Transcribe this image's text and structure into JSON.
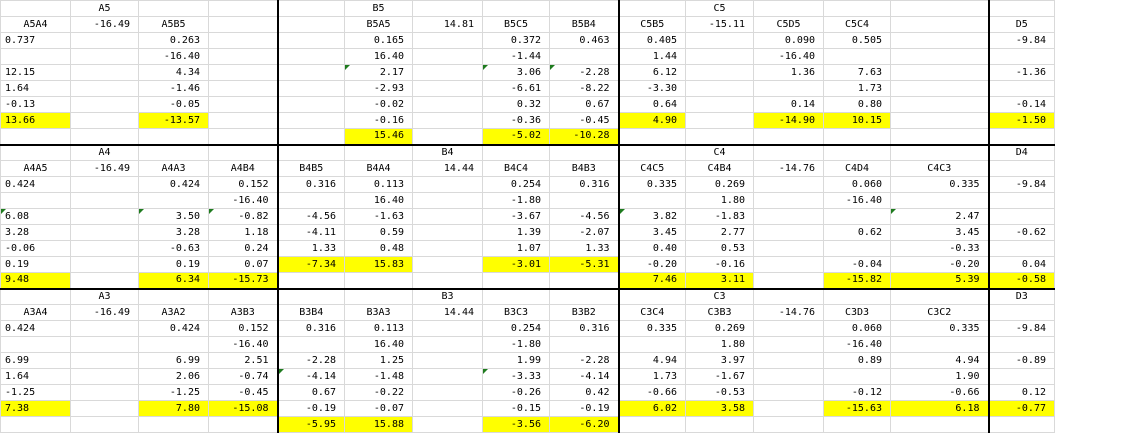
{
  "highlight_color": "#ffff00",
  "flag_color": "#1e7b1e",
  "sheet": {
    "rows": [
      [
        "",
        "A5",
        "",
        "",
        "",
        "B5",
        "",
        "",
        "",
        "",
        "C5",
        "",
        "",
        "",
        ""
      ],
      [
        "A5A4",
        "-16.49",
        "A5B5",
        "",
        "",
        "B5A5",
        "14.81",
        "B5C5",
        "B5B4",
        "C5B5",
        "-15.11",
        "C5D5",
        "C5C4",
        "",
        "D5"
      ],
      [
        "0.737",
        "",
        "0.263",
        "",
        "",
        "0.165",
        "",
        "0.372",
        "0.463",
        "0.405",
        "",
        "0.090",
        "0.505",
        "",
        "-9.84"
      ],
      [
        "",
        "",
        "-16.40",
        "",
        "",
        "16.40",
        "",
        "-1.44",
        "",
        "1.44",
        "",
        "-16.40",
        "",
        "",
        ""
      ],
      [
        "12.15",
        "",
        "4.34",
        "",
        "",
        "2.17",
        "",
        "3.06",
        "-2.28",
        "6.12",
        "",
        "1.36",
        "7.63",
        "",
        "-1.36"
      ],
      [
        "1.64",
        "",
        "-1.46",
        "",
        "",
        "-2.93",
        "",
        "-6.61",
        "-8.22",
        "-3.30",
        "",
        "",
        "1.73",
        "",
        ""
      ],
      [
        "-0.13",
        "",
        "-0.05",
        "",
        "",
        "-0.02",
        "",
        "0.32",
        "0.67",
        "0.64",
        "",
        "0.14",
        "0.80",
        "",
        "-0.14"
      ],
      [
        "13.66",
        "",
        "-13.57",
        "",
        "",
        "-0.16",
        "",
        "-0.36",
        "-0.45",
        "4.90",
        "",
        "-14.90",
        "10.15",
        "",
        "-1.50"
      ],
      [
        "",
        "",
        "",
        "",
        "",
        "15.46",
        "",
        "-5.02",
        "-10.28",
        "",
        "",
        "",
        "",
        "",
        ""
      ],
      [
        "",
        "A4",
        "",
        "",
        "",
        "",
        "B4",
        "",
        "",
        "",
        "C4",
        "",
        "",
        "",
        "D4"
      ],
      [
        "A4A5",
        "-16.49",
        "A4A3",
        "A4B4",
        "B4B5",
        "B4A4",
        "14.44",
        "B4C4",
        "B4B3",
        "C4C5",
        "C4B4",
        "-14.76",
        "C4D4",
        "C4C3",
        ""
      ],
      [
        "0.424",
        "",
        "0.424",
        "0.152",
        "0.316",
        "0.113",
        "",
        "0.254",
        "0.316",
        "0.335",
        "0.269",
        "",
        "0.060",
        "0.335",
        "-9.84"
      ],
      [
        "",
        "",
        "",
        "-16.40",
        "",
        "16.40",
        "",
        "-1.80",
        "",
        "",
        "1.80",
        "",
        "-16.40",
        "",
        ""
      ],
      [
        "6.08",
        "",
        "3.50",
        "-0.82",
        "-4.56",
        "-1.63",
        "",
        "-3.67",
        "-4.56",
        "3.82",
        "-1.83",
        "",
        "",
        "2.47",
        ""
      ],
      [
        "3.28",
        "",
        "3.28",
        "1.18",
        "-4.11",
        "0.59",
        "",
        "1.39",
        "-2.07",
        "3.45",
        "2.77",
        "",
        "0.62",
        "3.45",
        "-0.62"
      ],
      [
        "-0.06",
        "",
        "-0.63",
        "0.24",
        "1.33",
        "0.48",
        "",
        "1.07",
        "1.33",
        "0.40",
        "0.53",
        "",
        "",
        "-0.33",
        ""
      ],
      [
        "0.19",
        "",
        "0.19",
        "0.07",
        "-7.34",
        "15.83",
        "",
        "-3.01",
        "-5.31",
        "-0.20",
        "-0.16",
        "",
        "-0.04",
        "-0.20",
        "0.04"
      ],
      [
        "9.48",
        "",
        "6.34",
        "-15.73",
        "",
        "",
        "",
        "",
        "",
        "7.46",
        "3.11",
        "",
        "-15.82",
        "5.39",
        "-0.58"
      ],
      [
        "",
        "A3",
        "",
        "",
        "",
        "",
        "B3",
        "",
        "",
        "",
        "C3",
        "",
        "",
        "",
        "D3"
      ],
      [
        "A3A4",
        "-16.49",
        "A3A2",
        "A3B3",
        "B3B4",
        "B3A3",
        "14.44",
        "B3C3",
        "B3B2",
        "C3C4",
        "C3B3",
        "-14.76",
        "C3D3",
        "C3C2",
        ""
      ],
      [
        "0.424",
        "",
        "0.424",
        "0.152",
        "0.316",
        "0.113",
        "",
        "0.254",
        "0.316",
        "0.335",
        "0.269",
        "",
        "0.060",
        "0.335",
        "-9.84"
      ],
      [
        "",
        "",
        "",
        "-16.40",
        "",
        "16.40",
        "",
        "-1.80",
        "",
        "",
        "1.80",
        "",
        "-16.40",
        "",
        ""
      ],
      [
        "6.99",
        "",
        "6.99",
        "2.51",
        "-2.28",
        "1.25",
        "",
        "1.99",
        "-2.28",
        "4.94",
        "3.97",
        "",
        "0.89",
        "4.94",
        "-0.89"
      ],
      [
        "1.64",
        "",
        "2.06",
        "-0.74",
        "-4.14",
        "-1.48",
        "",
        "-3.33",
        "-4.14",
        "1.73",
        "-1.67",
        "",
        "",
        "1.90",
        ""
      ],
      [
        "-1.25",
        "",
        "-1.25",
        "-0.45",
        "0.67",
        "-0.22",
        "",
        "-0.26",
        "0.42",
        "-0.66",
        "-0.53",
        "",
        "-0.12",
        "-0.66",
        "0.12"
      ],
      [
        "7.38",
        "",
        "7.80",
        "-15.08",
        "-0.19",
        "-0.07",
        "",
        "-0.15",
        "-0.19",
        "6.02",
        "3.58",
        "",
        "-15.63",
        "6.18",
        "-0.77"
      ],
      [
        "",
        "",
        "",
        "",
        "-5.95",
        "15.88",
        "",
        "-3.56",
        "-6.20",
        "",
        "",
        "",
        "",
        "",
        ""
      ]
    ],
    "highlighted": [
      [
        7,
        0
      ],
      [
        7,
        2
      ],
      [
        7,
        9
      ],
      [
        7,
        11
      ],
      [
        7,
        12
      ],
      [
        7,
        14
      ],
      [
        8,
        5
      ],
      [
        8,
        7
      ],
      [
        8,
        8
      ],
      [
        16,
        4
      ],
      [
        16,
        5
      ],
      [
        16,
        7
      ],
      [
        16,
        8
      ],
      [
        17,
        0
      ],
      [
        17,
        2
      ],
      [
        17,
        3
      ],
      [
        17,
        9
      ],
      [
        17,
        10
      ],
      [
        17,
        12
      ],
      [
        17,
        13
      ],
      [
        17,
        14
      ],
      [
        25,
        0
      ],
      [
        25,
        2
      ],
      [
        25,
        3
      ],
      [
        25,
        9
      ],
      [
        25,
        10
      ],
      [
        25,
        12
      ],
      [
        25,
        13
      ],
      [
        25,
        14
      ],
      [
        26,
        4
      ],
      [
        26,
        5
      ],
      [
        26,
        7
      ],
      [
        26,
        8
      ]
    ],
    "flagged": [
      [
        4,
        5
      ],
      [
        4,
        7
      ],
      [
        4,
        8
      ],
      [
        13,
        0
      ],
      [
        13,
        2
      ],
      [
        13,
        3
      ],
      [
        13,
        9
      ],
      [
        13,
        13
      ],
      [
        23,
        4
      ],
      [
        23,
        7
      ]
    ]
  }
}
